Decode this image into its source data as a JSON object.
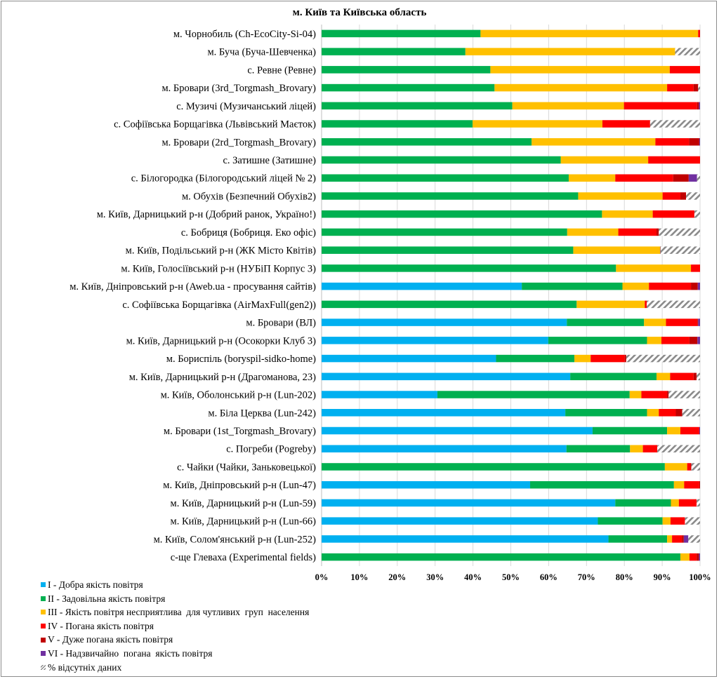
{
  "chart_data": {
    "type": "bar",
    "orientation": "horizontal",
    "stacked": "percent",
    "title": "м. Київ та Київська область",
    "xlabel": "",
    "ylabel": "",
    "xlim": [
      0,
      100
    ],
    "x_ticks": [
      "0%",
      "10%",
      "20%",
      "30%",
      "40%",
      "50%",
      "60%",
      "70%",
      "80%",
      "90%",
      "100%"
    ],
    "grid": true,
    "legend_position": "bottom-left",
    "categories": [
      "м. Чорнобиль (Ch-EcoCity-Si-04)",
      "м. Буча (Буча-Шевченка)",
      "с. Ревне (Ревне)",
      "м. Бровари (3rd_Torgmash_Brovary)",
      "с. Музичі (Музичанський ліцей)",
      "с. Софіївська Борщагівка (Львівський Маєток)",
      "м. Бровари (2rd_Torgmash_Brovary)",
      "с. Затишне (Затишне)",
      "с. Білогородка (Білогородський ліцей № 2)",
      "м. Обухів  (Безпечний Обухів2)",
      "м. Київ, Дарницький р-н (Добрий ранок, Україно!)",
      "с. Бобриця (Бобриця. Еко офіс)",
      "м. Київ, Подільський р-н (ЖК Місто Квітів)",
      "м. Київ, Голосіївський р-н (НУБіП  Корпус 3)",
      "м. Київ, Дніпровський р-н (Aweb.ua  - просування сайтів)",
      "с. Софіївська Борщагівка (AirMaxFull(gen2))",
      "м. Бровари (ВЛ)",
      "м. Київ, Дарницький р-н (Осокорки Клуб 3)",
      "м. Бориспіль (boryspil-sidko-home)",
      "м. Київ, Дарницький р-н (Драгоманова, 23)",
      "м. Київ, Оболонський р-н (Lun-202)",
      "м. Біла Церква (Lun-242)",
      "м. Бровари (1st_Torgmash_Brovary)",
      "с. Погреби (Pogreby)",
      "с. Чайки (Чайки, Заньковецької)",
      "м. Київ, Дніпровський р-н (Lun-47)",
      "м. Київ, Дарницький р-н (Lun-59)",
      "м. Київ, Дарницький р-н (Lun-66)",
      "м. Київ, Солом'янський р-н (Lun-252)",
      "с-ще Глеваха (Experimental  fields)"
    ],
    "series": [
      {
        "name": "I - Добра якість повітря",
        "color": "#00B0F0",
        "values": [
          0,
          0,
          0,
          0,
          0,
          0,
          0,
          0,
          0,
          0,
          0,
          0,
          0,
          0,
          52.9,
          0,
          64.8,
          59.9,
          46.1,
          65.7,
          30.6,
          64.4,
          71.6,
          64.7,
          0,
          55.1,
          77.6,
          73.0,
          75.8,
          0
        ]
      },
      {
        "name": "II - Задовільна якість повітря",
        "color": "#00B050",
        "values": [
          42.0,
          38.0,
          44.6,
          45.7,
          50.4,
          39.9,
          55.5,
          63.2,
          65.3,
          67.8,
          74.1,
          64.9,
          66.5,
          77.8,
          26.6,
          67.4,
          20.4,
          26.1,
          20.7,
          22.8,
          50.8,
          21.6,
          19.7,
          16.8,
          90.7,
          38.0,
          14.7,
          17.1,
          15.5,
          94.8
        ]
      },
      {
        "name": "III - Якість повітря несприятлива  для чутливих  груп  населення",
        "color": "#FFC000",
        "values": [
          57.5,
          55.4,
          47.4,
          45.6,
          29.5,
          34.3,
          32.7,
          23.1,
          12.3,
          22.3,
          13.4,
          13.5,
          23.0,
          19.8,
          7.0,
          18.0,
          5.8,
          3.8,
          4.3,
          3.6,
          3.1,
          3.1,
          3.5,
          3.4,
          5.9,
          2.7,
          2.1,
          2.1,
          1.3,
          2.4
        ]
      },
      {
        "name": "IV - Погана якість повітря",
        "color": "#FF0000",
        "values": [
          0.5,
          0,
          8.0,
          7.0,
          19.3,
          12.6,
          8.9,
          13.7,
          15.3,
          4.7,
          11.0,
          10.1,
          0,
          2.4,
          11.1,
          0.5,
          8.3,
          7.4,
          9.0,
          6.2,
          6.8,
          4.5,
          5.0,
          3.8,
          0.9,
          4.0,
          4.7,
          3.8,
          2.6,
          1.9
        ]
      },
      {
        "name": "V - Дуже погана якість повітря",
        "color": "#C00000",
        "values": [
          0,
          0,
          0,
          1.2,
          0.5,
          0,
          2.7,
          0,
          4.1,
          1.5,
          0,
          0.6,
          0,
          0,
          1.8,
          0,
          0.2,
          2.1,
          0.4,
          0.8,
          0.4,
          1.7,
          0,
          0,
          0.2,
          0.2,
          0,
          0,
          0.5,
          0.6
        ]
      },
      {
        "name": "VI - Надзвичайно  погана  якість повітря",
        "color": "#7030A0",
        "values": [
          0,
          0,
          0,
          0,
          0.3,
          0,
          0.2,
          0,
          2.2,
          0,
          0,
          0,
          0.1,
          0,
          0.6,
          0,
          0.5,
          0.7,
          0,
          0,
          0,
          0,
          0.2,
          0,
          0,
          0,
          0,
          0,
          1.2,
          0.3
        ]
      },
      {
        "name": "% відсутніх даних",
        "color": "hatch",
        "values": [
          0,
          6.6,
          0,
          0.5,
          0,
          13.2,
          0,
          0,
          0.8,
          3.7,
          1.5,
          10.9,
          10.4,
          0,
          0,
          14.1,
          0,
          0,
          19.5,
          0.9,
          8.3,
          4.7,
          0,
          11.3,
          2.3,
          0,
          0.9,
          4.0,
          3.1,
          0
        ]
      }
    ]
  }
}
